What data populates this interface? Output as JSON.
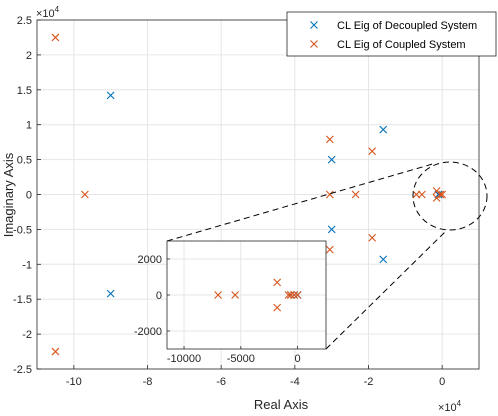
{
  "chart_data": {
    "type": "scatter",
    "xlabel": "Real Axis",
    "ylabel": "Imaginary Axis",
    "x_exponent_label": "×10",
    "x_exponent_power": "4",
    "y_exponent_label": "×10",
    "y_exponent_power": "4",
    "xlim": [
      -11,
      1
    ],
    "ylim": [
      -25000,
      25000
    ],
    "xticks": [
      -10,
      -8,
      -6,
      -4,
      -2,
      0
    ],
    "yticks": [
      -25000,
      -20000,
      -15000,
      -10000,
      -5000,
      0,
      5000,
      10000,
      15000,
      20000,
      25000
    ],
    "ytick_labels": [
      "-2.5",
      "-2",
      "-1.5",
      "-1",
      "-0.5",
      "0",
      "0.5",
      "1",
      "1.5",
      "2",
      "2.5"
    ],
    "grid": true,
    "legend_position": "top-right",
    "series": [
      {
        "name": "CL Eig of Decoupled System",
        "color": "#0072BD",
        "marker": "x",
        "x": [
          -9.0,
          -9.0,
          -3.0,
          -3.0,
          -1.6,
          -1.6,
          -0.1,
          -0.1
        ],
        "y": [
          14200,
          -14200,
          5000,
          -5000,
          9300,
          -9300,
          0,
          0
        ]
      },
      {
        "name": "CL Eig of Coupled System",
        "color": "#D95319",
        "marker": "x",
        "x": [
          -10.5,
          -10.5,
          -9.7,
          -3.05,
          -3.05,
          -3.05,
          -2.35,
          -1.9,
          -1.9,
          -0.7,
          -0.55,
          -0.15,
          -0.15,
          -0.05,
          0.0
        ],
        "y": [
          22500,
          -22500,
          0,
          7900,
          0,
          -7900,
          0,
          6200,
          -6200,
          0,
          0,
          500,
          -500,
          0,
          0
        ]
      }
    ],
    "inset": {
      "xlim": [
        -11500,
        2500
      ],
      "ylim": [
        -3000,
        3000
      ],
      "xticks": [
        -10000,
        -5000,
        0
      ],
      "xtick_labels": [
        "-10000",
        "-5000",
        "0"
      ],
      "yticks": [
        -2000,
        0,
        2000
      ],
      "ytick_labels": [
        "-2000",
        "0",
        "2000"
      ],
      "series": [
        {
          "name": "CL Eig of Decoupled System",
          "color": "#0072BD",
          "x": [
            -600,
            -300,
            0
          ],
          "y": [
            0,
            0,
            0
          ]
        },
        {
          "name": "CL Eig of Coupled System",
          "color": "#D95319",
          "x": [
            -7000,
            -5500,
            -1800,
            -1800,
            -800,
            -600,
            -300,
            0
          ],
          "y": [
            0,
            0,
            700,
            -700,
            0,
            0,
            0,
            0
          ]
        }
      ]
    }
  }
}
